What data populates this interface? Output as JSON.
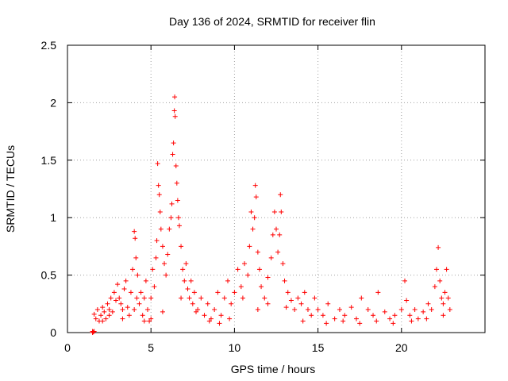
{
  "chart_data": {
    "type": "scatter",
    "title": "Day 136 of 2024, SRMTID for receiver flin",
    "xlabel": "GPS time / hours",
    "ylabel": "SRMTID / TECUs",
    "xlim": [
      0,
      25
    ],
    "ylim": [
      0,
      2.5
    ],
    "x_ticks": [
      0,
      5,
      10,
      15,
      20
    ],
    "x_tick_labels": [
      "0",
      "5",
      "10",
      "15",
      "20"
    ],
    "y_ticks": [
      0,
      0.5,
      1,
      1.5,
      2,
      2.5
    ],
    "y_tick_labels": [
      "0",
      "0.5",
      "1",
      "1.5",
      "2",
      "2.5"
    ],
    "grid": true,
    "marker": "+",
    "marker_color": "#ff0000",
    "series": [
      {
        "name": "SRMTID",
        "color": "#ff0000",
        "points": [
          [
            1.5,
            0.0
          ],
          [
            1.55,
            0.005
          ],
          [
            1.6,
            0.01
          ],
          [
            1.5,
            0.01
          ],
          [
            1.6,
            0.16
          ],
          [
            1.7,
            0.12
          ],
          [
            1.8,
            0.2
          ],
          [
            1.9,
            0.1
          ],
          [
            2.0,
            0.15
          ],
          [
            2.1,
            0.22
          ],
          [
            2.2,
            0.18
          ],
          [
            2.3,
            0.12
          ],
          [
            2.4,
            0.25
          ],
          [
            2.5,
            0.2
          ],
          [
            2.6,
            0.3
          ],
          [
            2.7,
            0.18
          ],
          [
            2.8,
            0.35
          ],
          [
            2.9,
            0.28
          ],
          [
            3.0,
            0.42
          ],
          [
            3.1,
            0.3
          ],
          [
            3.2,
            0.25
          ],
          [
            3.3,
            0.2
          ],
          [
            3.4,
            0.38
          ],
          [
            3.5,
            0.45
          ],
          [
            3.6,
            0.22
          ],
          [
            3.7,
            0.15
          ],
          [
            3.8,
            0.35
          ],
          [
            3.9,
            0.55
          ],
          [
            4.0,
            0.88
          ],
          [
            4.05,
            0.82
          ],
          [
            4.1,
            0.65
          ],
          [
            4.15,
            0.3
          ],
          [
            4.2,
            0.5
          ],
          [
            4.3,
            0.25
          ],
          [
            4.4,
            0.35
          ],
          [
            4.5,
            0.15
          ],
          [
            4.6,
            0.3
          ],
          [
            4.7,
            0.45
          ],
          [
            4.8,
            0.2
          ],
          [
            4.9,
            0.1
          ],
          [
            5.0,
            0.3
          ],
          [
            5.1,
            0.55
          ],
          [
            5.2,
            0.4
          ],
          [
            5.3,
            0.65
          ],
          [
            5.35,
            0.8
          ],
          [
            5.4,
            1.47
          ],
          [
            5.45,
            1.28
          ],
          [
            5.5,
            1.2
          ],
          [
            5.55,
            1.05
          ],
          [
            5.6,
            0.9
          ],
          [
            5.7,
            0.75
          ],
          [
            5.8,
            0.6
          ],
          [
            5.9,
            0.5
          ],
          [
            6.0,
            0.68
          ],
          [
            6.1,
            0.9
          ],
          [
            6.2,
            1.0
          ],
          [
            6.25,
            1.12
          ],
          [
            6.3,
            1.55
          ],
          [
            6.35,
            1.65
          ],
          [
            6.4,
            1.93
          ],
          [
            6.42,
            2.05
          ],
          [
            6.45,
            1.88
          ],
          [
            6.5,
            1.45
          ],
          [
            6.55,
            1.3
          ],
          [
            6.6,
            1.15
          ],
          [
            6.65,
            1.0
          ],
          [
            6.7,
            0.93
          ],
          [
            6.8,
            0.75
          ],
          [
            6.9,
            0.55
          ],
          [
            7.0,
            0.45
          ],
          [
            7.1,
            0.6
          ],
          [
            7.2,
            0.38
          ],
          [
            7.3,
            0.3
          ],
          [
            7.4,
            0.45
          ],
          [
            7.5,
            0.25
          ],
          [
            7.6,
            0.35
          ],
          [
            7.8,
            0.2
          ],
          [
            8.0,
            0.3
          ],
          [
            8.2,
            0.15
          ],
          [
            8.4,
            0.25
          ],
          [
            8.6,
            0.12
          ],
          [
            8.8,
            0.2
          ],
          [
            9.0,
            0.35
          ],
          [
            9.2,
            0.15
          ],
          [
            9.4,
            0.3
          ],
          [
            9.6,
            0.45
          ],
          [
            9.8,
            0.25
          ],
          [
            10.0,
            0.35
          ],
          [
            10.2,
            0.55
          ],
          [
            10.4,
            0.4
          ],
          [
            10.6,
            0.6
          ],
          [
            10.8,
            0.5
          ],
          [
            10.9,
            0.75
          ],
          [
            11.0,
            1.05
          ],
          [
            11.1,
            0.9
          ],
          [
            11.2,
            1.0
          ],
          [
            11.25,
            1.28
          ],
          [
            11.3,
            1.18
          ],
          [
            11.4,
            0.7
          ],
          [
            11.5,
            0.55
          ],
          [
            11.6,
            0.4
          ],
          [
            11.8,
            0.3
          ],
          [
            12.0,
            0.48
          ],
          [
            12.2,
            0.65
          ],
          [
            12.3,
            0.85
          ],
          [
            12.4,
            1.05
          ],
          [
            12.5,
            0.9
          ],
          [
            12.6,
            0.7
          ],
          [
            12.7,
            0.85
          ],
          [
            12.75,
            1.2
          ],
          [
            12.8,
            1.05
          ],
          [
            12.9,
            0.6
          ],
          [
            13.0,
            0.45
          ],
          [
            13.2,
            0.35
          ],
          [
            13.4,
            0.28
          ],
          [
            13.6,
            0.2
          ],
          [
            13.8,
            0.3
          ],
          [
            14.0,
            0.25
          ],
          [
            14.2,
            0.35
          ],
          [
            14.4,
            0.2
          ],
          [
            14.6,
            0.15
          ],
          [
            14.8,
            0.3
          ],
          [
            15.0,
            0.2
          ],
          [
            15.3,
            0.15
          ],
          [
            15.6,
            0.25
          ],
          [
            16.0,
            0.12
          ],
          [
            16.3,
            0.2
          ],
          [
            16.6,
            0.15
          ],
          [
            17.0,
            0.22
          ],
          [
            17.3,
            0.12
          ],
          [
            17.6,
            0.3
          ],
          [
            18.0,
            0.2
          ],
          [
            18.3,
            0.15
          ],
          [
            18.6,
            0.35
          ],
          [
            19.0,
            0.18
          ],
          [
            19.3,
            0.12
          ],
          [
            19.6,
            0.15
          ],
          [
            20.0,
            0.2
          ],
          [
            20.2,
            0.45
          ],
          [
            20.3,
            0.28
          ],
          [
            20.5,
            0.15
          ],
          [
            20.8,
            0.2
          ],
          [
            21.0,
            0.12
          ],
          [
            21.3,
            0.18
          ],
          [
            21.6,
            0.25
          ],
          [
            21.8,
            0.2
          ],
          [
            22.0,
            0.4
          ],
          [
            22.1,
            0.55
          ],
          [
            22.2,
            0.74
          ],
          [
            22.3,
            0.45
          ],
          [
            22.4,
            0.3
          ],
          [
            22.5,
            0.25
          ],
          [
            22.6,
            0.35
          ],
          [
            22.7,
            0.55
          ],
          [
            22.8,
            0.3
          ],
          [
            22.9,
            0.2
          ],
          [
            2.1,
            0.1
          ],
          [
            2.5,
            0.15
          ],
          [
            3.3,
            0.12
          ],
          [
            4.0,
            0.2
          ],
          [
            4.6,
            0.1
          ],
          [
            5.0,
            0.12
          ],
          [
            5.7,
            0.18
          ],
          [
            6.8,
            0.3
          ],
          [
            7.7,
            0.18
          ],
          [
            8.5,
            0.1
          ],
          [
            9.1,
            0.08
          ],
          [
            9.7,
            0.12
          ],
          [
            10.5,
            0.3
          ],
          [
            11.4,
            0.2
          ],
          [
            12.0,
            0.25
          ],
          [
            13.1,
            0.22
          ],
          [
            14.1,
            0.1
          ],
          [
            15.5,
            0.08
          ],
          [
            16.5,
            0.1
          ],
          [
            17.5,
            0.08
          ],
          [
            18.5,
            0.1
          ],
          [
            19.5,
            0.08
          ],
          [
            20.6,
            0.1
          ],
          [
            21.5,
            0.12
          ],
          [
            22.5,
            0.15
          ]
        ]
      }
    ]
  }
}
